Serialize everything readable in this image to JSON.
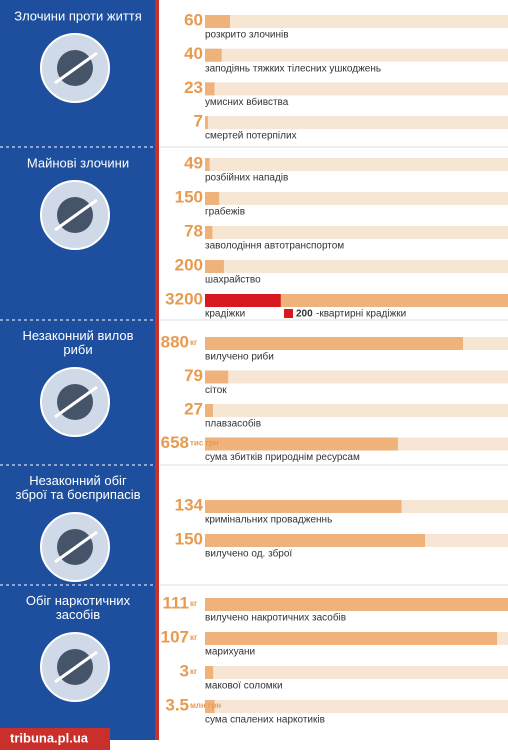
{
  "sections": [
    {
      "title": "Злочини проти життя",
      "items": [
        {
          "value": 60,
          "label": "розкрито злочинів"
        },
        {
          "value": 40,
          "label": "заподіянь тяжких тілесних ушкоджень"
        },
        {
          "value": 23,
          "label": "умисних вбивства"
        },
        {
          "value": 7,
          "label": "смертей потерпілих"
        }
      ]
    },
    {
      "title": "Майнові злочини",
      "items": [
        {
          "value": 49,
          "label": "розбійних нападів"
        },
        {
          "value": 150,
          "label": "грабежів"
        },
        {
          "value": 78,
          "label": "заволодіння автотранспортом"
        },
        {
          "value": 200,
          "label": "шахрайство"
        },
        {
          "value": 3200,
          "label": "крадіжки",
          "sub_value": 200,
          "sub_label": "-квартирні крадіжки"
        }
      ]
    },
    {
      "title": "Незаконний вилов риби",
      "items": [
        {
          "value": 880,
          "unit": "кг",
          "label": "вилучено риби"
        },
        {
          "value": 79,
          "label": "сіток"
        },
        {
          "value": 27,
          "label": "плавзасобів"
        },
        {
          "value": 658,
          "unit": "тис грн",
          "label": "сума збитків природнім ресурсам"
        }
      ]
    },
    {
      "title": "Незаконний обіг зброї та боєприпасів",
      "items": [
        {
          "value": 134,
          "label": "кримінальних провадженнь"
        },
        {
          "value": 150,
          "label": "вилучено од. зброї"
        }
      ]
    },
    {
      "title": "Обіг наркотичних засобів",
      "items": [
        {
          "value": 111,
          "unit": "кг",
          "label": "вилучено накротичних засобів"
        },
        {
          "value": 107,
          "unit": "кг",
          "label": "марихуани"
        },
        {
          "value": 3,
          "unit": "кг",
          "label": "макової соломки"
        },
        {
          "value": 3.5,
          "unit": "млн грн",
          "label": "сума спалених наркотиків"
        }
      ]
    }
  ],
  "footer": "tribuna.pl.ua"
}
